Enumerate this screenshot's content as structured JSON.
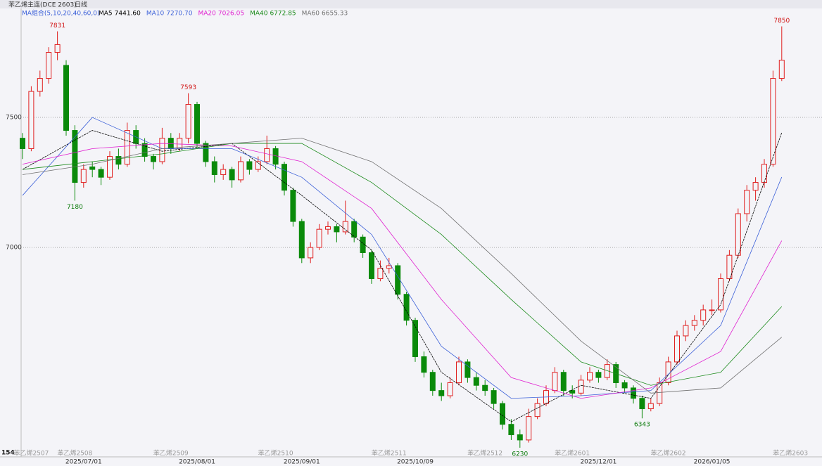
{
  "chart_data": {
    "type": "candlestick",
    "title": "苯乙烯主连(DCE 2603)",
    "period": "日线",
    "legend_title": "MA组合(5,10,20,40,60,0)",
    "candles": [
      [
        7420,
        7440,
        7340,
        7380
      ],
      [
        7380,
        7620,
        7370,
        7600
      ],
      [
        7600,
        7680,
        7580,
        7650
      ],
      [
        7650,
        7770,
        7630,
        7750
      ],
      [
        7750,
        7831,
        7720,
        7780
      ],
      [
        7700,
        7720,
        7430,
        7450
      ],
      [
        7450,
        7470,
        7180,
        7250
      ],
      [
        7250,
        7320,
        7230,
        7300
      ],
      [
        7310,
        7330,
        7270,
        7300
      ],
      [
        7300,
        7310,
        7240,
        7270
      ],
      [
        7270,
        7370,
        7260,
        7350
      ],
      [
        7350,
        7380,
        7300,
        7320
      ],
      [
        7320,
        7480,
        7310,
        7450
      ],
      [
        7450,
        7470,
        7380,
        7400
      ],
      [
        7400,
        7420,
        7330,
        7350
      ],
      [
        7350,
        7360,
        7300,
        7330
      ],
      [
        7330,
        7460,
        7320,
        7420
      ],
      [
        7420,
        7440,
        7360,
        7380
      ],
      [
        7380,
        7440,
        7370,
        7420
      ],
      [
        7420,
        7593,
        7400,
        7550
      ],
      [
        7550,
        7560,
        7380,
        7400
      ],
      [
        7400,
        7410,
        7310,
        7330
      ],
      [
        7330,
        7350,
        7250,
        7280
      ],
      [
        7280,
        7320,
        7260,
        7300
      ],
      [
        7300,
        7310,
        7230,
        7260
      ],
      [
        7260,
        7350,
        7250,
        7330
      ],
      [
        7330,
        7340,
        7280,
        7300
      ],
      [
        7300,
        7350,
        7290,
        7330
      ],
      [
        7330,
        7430,
        7320,
        7380
      ],
      [
        7380,
        7390,
        7300,
        7320
      ],
      [
        7320,
        7330,
        7200,
        7220
      ],
      [
        7220,
        7230,
        7080,
        7100
      ],
      [
        7100,
        7110,
        6940,
        6960
      ],
      [
        6960,
        7020,
        6940,
        7000
      ],
      [
        7000,
        7090,
        6990,
        7070
      ],
      [
        7070,
        7100,
        7050,
        7080
      ],
      [
        7080,
        7090,
        7020,
        7060
      ],
      [
        7060,
        7180,
        7050,
        7100
      ],
      [
        7100,
        7110,
        7020,
        7040
      ],
      [
        7040,
        7050,
        6960,
        6980
      ],
      [
        6980,
        6990,
        6860,
        6880
      ],
      [
        6880,
        6950,
        6870,
        6920
      ],
      [
        6920,
        6960,
        6900,
        6930
      ],
      [
        6930,
        6940,
        6800,
        6820
      ],
      [
        6820,
        6830,
        6700,
        6720
      ],
      [
        6720,
        6730,
        6560,
        6580
      ],
      [
        6580,
        6600,
        6500,
        6520
      ],
      [
        6520,
        6530,
        6430,
        6450
      ],
      [
        6450,
        6480,
        6410,
        6430
      ],
      [
        6430,
        6500,
        6420,
        6480
      ],
      [
        6480,
        6580,
        6470,
        6560
      ],
      [
        6560,
        6570,
        6480,
        6500
      ],
      [
        6500,
        6520,
        6450,
        6470
      ],
      [
        6470,
        6490,
        6430,
        6450
      ],
      [
        6450,
        6460,
        6380,
        6400
      ],
      [
        6400,
        6410,
        6300,
        6320
      ],
      [
        6320,
        6340,
        6260,
        6280
      ],
      [
        6280,
        6300,
        6230,
        6260
      ],
      [
        6260,
        6380,
        6250,
        6350
      ],
      [
        6350,
        6420,
        6340,
        6400
      ],
      [
        6400,
        6470,
        6390,
        6450
      ],
      [
        6450,
        6540,
        6440,
        6520
      ],
      [
        6520,
        6530,
        6430,
        6450
      ],
      [
        6450,
        6470,
        6420,
        6440
      ],
      [
        6440,
        6510,
        6430,
        6490
      ],
      [
        6490,
        6540,
        6480,
        6520
      ],
      [
        6520,
        6530,
        6480,
        6500
      ],
      [
        6500,
        6570,
        6490,
        6550
      ],
      [
        6550,
        6560,
        6460,
        6480
      ],
      [
        6480,
        6490,
        6440,
        6460
      ],
      [
        6460,
        6470,
        6400,
        6420
      ],
      [
        6420,
        6430,
        6343,
        6380
      ],
      [
        6380,
        6420,
        6370,
        6400
      ],
      [
        6400,
        6500,
        6390,
        6480
      ],
      [
        6480,
        6580,
        6470,
        6560
      ],
      [
        6560,
        6680,
        6550,
        6660
      ],
      [
        6660,
        6720,
        6640,
        6700
      ],
      [
        6700,
        6740,
        6680,
        6720
      ],
      [
        6720,
        6780,
        6700,
        6760
      ],
      [
        6760,
        6800,
        6740,
        6760
      ],
      [
        6760,
        6900,
        6750,
        6880
      ],
      [
        6880,
        6990,
        6870,
        6970
      ],
      [
        6970,
        7150,
        6960,
        7130
      ],
      [
        7130,
        7240,
        7100,
        7220
      ],
      [
        7220,
        7270,
        7180,
        7250
      ],
      [
        7250,
        7340,
        7230,
        7320
      ],
      [
        7320,
        7680,
        7310,
        7650
      ],
      [
        7650,
        7850,
        7640,
        7720
      ]
    ],
    "up_color": "#e02020",
    "down_color": "#0a8a0a",
    "series": [
      {
        "name": "MA5",
        "color": "#000000",
        "label_value": "7441.60",
        "x": [
          0,
          8,
          16,
          24,
          32,
          40,
          48,
          56,
          64,
          72,
          80,
          87
        ],
        "values": [
          7300,
          7450,
          7370,
          7400,
          7200,
          6990,
          6520,
          6330,
          6470,
          6420,
          6780,
          7441.6
        ]
      },
      {
        "name": "MA10",
        "color": "#3a5fd8",
        "label_value": "7270.70",
        "x": [
          0,
          8,
          16,
          24,
          32,
          40,
          48,
          56,
          64,
          72,
          80,
          87
        ],
        "values": [
          7200,
          7500,
          7380,
          7380,
          7270,
          7050,
          6620,
          6420,
          6430,
          6450,
          6700,
          7270.7
        ]
      },
      {
        "name": "MA20",
        "color": "#e020d0",
        "label_value": "7026.05",
        "x": [
          0,
          8,
          16,
          24,
          32,
          40,
          48,
          56,
          64,
          72,
          80,
          87
        ],
        "values": [
          7320,
          7380,
          7400,
          7390,
          7330,
          7150,
          6800,
          6500,
          6420,
          6460,
          6600,
          7026.05
        ]
      },
      {
        "name": "MA40",
        "color": "#1a8a1a",
        "label_value": "6772.85",
        "x": [
          0,
          8,
          16,
          24,
          32,
          40,
          48,
          56,
          64,
          72,
          80,
          87
        ],
        "values": [
          7300,
          7330,
          7360,
          7400,
          7400,
          7250,
          7050,
          6800,
          6560,
          6470,
          6520,
          6772.85
        ]
      },
      {
        "name": "MA60",
        "color": "#707070",
        "label_value": "6655.33",
        "x": [
          0,
          8,
          16,
          24,
          32,
          40,
          48,
          56,
          64,
          72,
          80,
          87
        ],
        "values": [
          7280,
          7320,
          7380,
          7400,
          7420,
          7330,
          7150,
          6900,
          6640,
          6440,
          6460,
          6655.33
        ]
      }
    ],
    "annotations": [
      {
        "index": 4,
        "value": 7831
      },
      {
        "index": 19,
        "value": 7593
      },
      {
        "index": 6,
        "value": 7180
      },
      {
        "index": 57,
        "value": 6230
      },
      {
        "index": 71,
        "value": 6343
      },
      {
        "index": 87,
        "value": 7850
      }
    ],
    "ylim": [
      6222,
      7919
    ],
    "yticks": [
      7000,
      7500
    ],
    "date_labels": [
      {
        "index": 7,
        "label": "2025/07/01"
      },
      {
        "index": 20,
        "label": "2025/08/01"
      },
      {
        "index": 32,
        "label": "2025/09/01"
      },
      {
        "index": 45,
        "label": "2025/10/09"
      },
      {
        "index": 66,
        "label": "2025/12/01"
      },
      {
        "index": 79,
        "label": "2026/01/05"
      }
    ],
    "contract_labels": [
      {
        "index": 1,
        "label": "苯乙烯2507"
      },
      {
        "index": 6,
        "label": "苯乙烯2508"
      },
      {
        "index": 17,
        "label": "苯乙烯2509"
      },
      {
        "index": 29,
        "label": "苯乙烯2510"
      },
      {
        "index": 42,
        "label": "苯乙烯2511"
      },
      {
        "index": 53,
        "label": "苯乙烯2512"
      },
      {
        "index": 63,
        "label": "苯乙烯2601"
      },
      {
        "index": 74,
        "label": "苯乙烯2602"
      },
      {
        "index": 88,
        "label": "苯乙烯2603"
      }
    ],
    "corner_label": "154"
  }
}
